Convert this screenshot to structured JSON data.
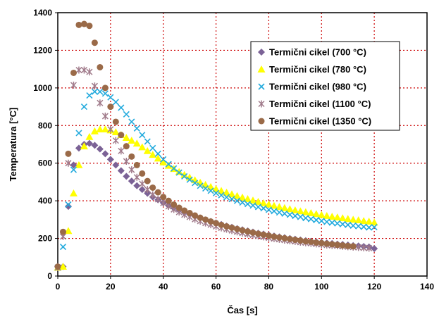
{
  "chart_data": {
    "type": "scatter",
    "xlabel": "Čas [s]",
    "ylabel": "Temperatura [°C]",
    "xlim": [
      0,
      140
    ],
    "ylim": [
      0,
      1400
    ],
    "xticks": [
      0,
      20,
      40,
      60,
      80,
      100,
      120,
      140
    ],
    "yticks": [
      0,
      200,
      400,
      600,
      800,
      1000,
      1200,
      1400
    ],
    "grid": true,
    "grid_style": "dotted",
    "grid_color": "#cc0000",
    "legend_position": "top-right",
    "series": [
      {
        "name": "Termični cikel (700 °C)",
        "marker": "diamond",
        "color": "#7b6296",
        "x": [
          0,
          2,
          4,
          6,
          8,
          10,
          12,
          14,
          16,
          18,
          20,
          22,
          24,
          26,
          28,
          30,
          32,
          34,
          36,
          38,
          40,
          42,
          44,
          46,
          48,
          50,
          52,
          54,
          56,
          58,
          60,
          62,
          64,
          66,
          68,
          70,
          72,
          74,
          76,
          78,
          80,
          82,
          84,
          86,
          88,
          90,
          92,
          94,
          96,
          98,
          100,
          102,
          104,
          106,
          108,
          110,
          112,
          114,
          116,
          118,
          120
        ],
        "y": [
          50,
          50,
          370,
          590,
          680,
          700,
          705,
          695,
          675,
          650,
          620,
          590,
          560,
          530,
          505,
          480,
          460,
          440,
          420,
          405,
          390,
          375,
          362,
          350,
          338,
          328,
          318,
          308,
          298,
          290,
          282,
          274,
          266,
          259,
          252,
          246,
          240,
          234,
          228,
          223,
          218,
          213,
          208,
          204,
          200,
          196,
          192,
          188,
          185,
          182,
          179,
          176,
          173,
          170,
          168,
          165,
          162,
          160,
          157,
          155,
          146
        ]
      },
      {
        "name": "Termični cikel (780 °C)",
        "marker": "triangle",
        "color": "#ffff00",
        "x": [
          0,
          2,
          4,
          6,
          8,
          10,
          12,
          14,
          16,
          18,
          20,
          22,
          24,
          26,
          28,
          30,
          32,
          34,
          36,
          38,
          40,
          42,
          44,
          46,
          48,
          50,
          52,
          54,
          56,
          58,
          60,
          62,
          64,
          66,
          68,
          70,
          72,
          74,
          76,
          78,
          80,
          82,
          84,
          86,
          88,
          90,
          92,
          94,
          96,
          98,
          100,
          102,
          104,
          106,
          108,
          110,
          112,
          114,
          116,
          118,
          120
        ],
        "y": [
          45,
          50,
          240,
          440,
          590,
          690,
          740,
          770,
          780,
          780,
          775,
          765,
          750,
          735,
          720,
          705,
          685,
          665,
          645,
          625,
          605,
          587,
          570,
          554,
          538,
          524,
          510,
          497,
          485,
          474,
          463,
          453,
          444,
          435,
          426,
          418,
          410,
          402,
          395,
          388,
          381,
          374,
          368,
          362,
          356,
          350,
          345,
          340,
          335,
          330,
          325,
          320,
          316,
          312,
          308,
          304,
          300,
          297,
          293,
          290,
          285
        ]
      },
      {
        "name": "Termični cikel (980 °C)",
        "marker": "x",
        "color": "#22aadd",
        "x": [
          0,
          2,
          4,
          6,
          8,
          10,
          12,
          14,
          16,
          18,
          20,
          22,
          24,
          26,
          28,
          30,
          32,
          34,
          36,
          38,
          40,
          42,
          44,
          46,
          48,
          50,
          52,
          54,
          56,
          58,
          60,
          62,
          64,
          66,
          68,
          70,
          72,
          74,
          76,
          78,
          80,
          82,
          84,
          86,
          88,
          90,
          92,
          94,
          96,
          98,
          100,
          102,
          104,
          106,
          108,
          110,
          112,
          114,
          116,
          118,
          120
        ],
        "y": [
          45,
          155,
          380,
          565,
          760,
          900,
          960,
          980,
          980,
          970,
          950,
          925,
          895,
          860,
          820,
          785,
          750,
          715,
          680,
          650,
          620,
          595,
          572,
          550,
          530,
          512,
          495,
          480,
          466,
          453,
          441,
          430,
          419,
          409,
          400,
          391,
          383,
          375,
          367,
          360,
          352,
          345,
          338,
          332,
          326,
          320,
          314,
          308,
          303,
          298,
          293,
          288,
          284,
          280,
          276,
          272,
          268,
          265,
          262,
          258,
          260
        ]
      },
      {
        "name": "Termični cikel (1100 °C)",
        "marker": "star",
        "color": "#a07a8a",
        "x": [
          0,
          2,
          4,
          6,
          8,
          10,
          12,
          14,
          16,
          18,
          20,
          22,
          24,
          26,
          28,
          30,
          32,
          34,
          36,
          38,
          40,
          42,
          44,
          46,
          48,
          50,
          52,
          54,
          56,
          58,
          60,
          62,
          64,
          66,
          68,
          70,
          72,
          74,
          76,
          78,
          80,
          82,
          84,
          86,
          88,
          90,
          92,
          94,
          96,
          98,
          100,
          102,
          104,
          106,
          108,
          110,
          112,
          114,
          116,
          118
        ],
        "y": [
          45,
          210,
          600,
          1015,
          1095,
          1095,
          1085,
          1010,
          920,
          850,
          780,
          720,
          665,
          610,
          565,
          525,
          490,
          460,
          432,
          408,
          388,
          370,
          354,
          340,
          326,
          314,
          302,
          292,
          282,
          273,
          264,
          256,
          249,
          242,
          235,
          229,
          223,
          218,
          213,
          208,
          203,
          199,
          195,
          191,
          187,
          184,
          180,
          177,
          174,
          171,
          168,
          165,
          163,
          161,
          158,
          156,
          154,
          152,
          150,
          148
        ]
      },
      {
        "name": "Termični cikel (1350 °C)",
        "marker": "circle",
        "color": "#9a6a48",
        "x": [
          0,
          2,
          4,
          6,
          8,
          10,
          12,
          14,
          16,
          18,
          20,
          22,
          24,
          26,
          28,
          30,
          32,
          34,
          36,
          38,
          40,
          42,
          44,
          46,
          48,
          50,
          52,
          54,
          56,
          58,
          60,
          62,
          64,
          66,
          68,
          70,
          72,
          74,
          76,
          78,
          80,
          82,
          84,
          86,
          88,
          90,
          92,
          94,
          96,
          98,
          100,
          102,
          104,
          106,
          108,
          110,
          112
        ],
        "y": [
          50,
          235,
          650,
          1080,
          1335,
          1340,
          1330,
          1240,
          1110,
          1000,
          900,
          820,
          750,
          690,
          635,
          590,
          545,
          505,
          470,
          445,
          420,
          400,
          380,
          363,
          348,
          335,
          322,
          310,
          300,
          290,
          281,
          272,
          264,
          257,
          250,
          243,
          237,
          231,
          225,
          220,
          215,
          210,
          205,
          201,
          197,
          193,
          189,
          185,
          182,
          178,
          175,
          172,
          169,
          166,
          163,
          160,
          158
        ]
      }
    ]
  }
}
